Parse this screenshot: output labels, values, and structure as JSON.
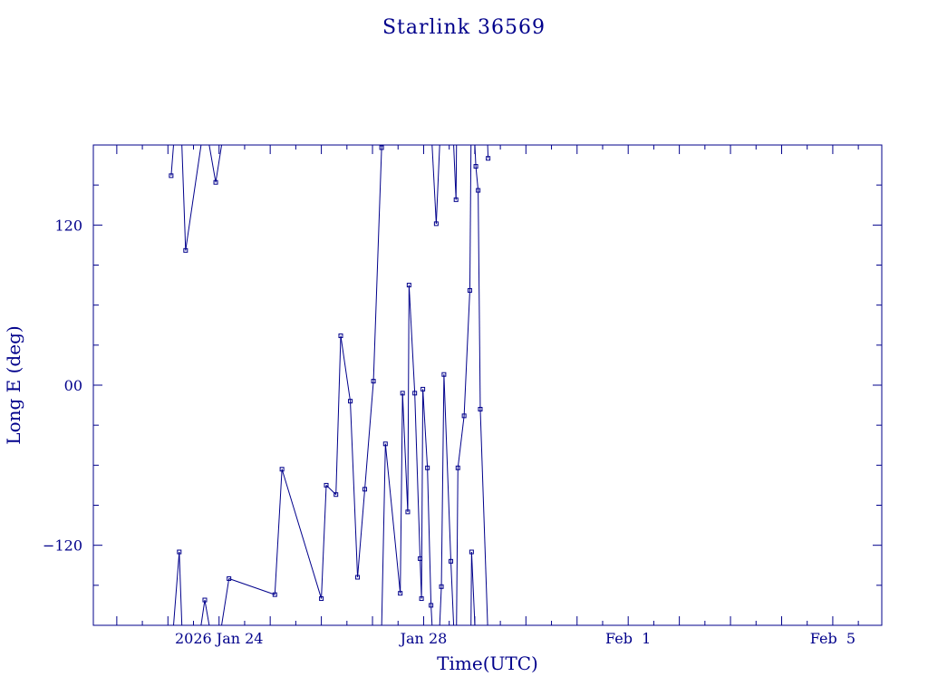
{
  "chart_data": {
    "type": "line",
    "title": "Starlink 36569",
    "xlabel": "Time(UTC)",
    "ylabel": "Long E (deg)",
    "xlim": [
      "2026-01-21T13:00",
      "2026-02-05T23:00"
    ],
    "ylim": [
      -180,
      180
    ],
    "x_tick_labels": [
      {
        "label": "2026 Jan 24",
        "at": "2026-01-24T00:00"
      },
      {
        "label": "Jan 28",
        "at": "2026-01-28T00:00"
      },
      {
        "label": "Feb  1",
        "at": "2026-02-01T00:00"
      },
      {
        "label": "Feb  5",
        "at": "2026-02-05T00:00"
      }
    ],
    "y_tick_labels": [
      {
        "label": "120",
        "at": 120
      },
      {
        "label": "00",
        "at": 0
      },
      {
        "label": "−120",
        "at": -120
      }
    ],
    "y_minor_step": 30,
    "x_minor_step_hours": 12,
    "grid": false,
    "color": "#00008b",
    "series": [
      {
        "values": [
          [
            "2026-01-23T01:31",
            157
          ],
          [
            "2026-01-23T05:19",
            -125
          ],
          [
            "2026-01-23T08:18",
            101
          ],
          [
            "2026-01-23T17:18",
            -161
          ],
          [
            "2026-01-23T22:26",
            152
          ],
          [
            "2026-01-24T04:39",
            -145
          ],
          [
            "2026-01-25T02:11",
            -157
          ],
          [
            "2026-01-25T05:31",
            -63
          ],
          [
            "2026-01-26T00:00",
            -160
          ],
          [
            "2026-01-26T02:18",
            -75
          ],
          [
            "2026-01-26T06:51",
            -82
          ],
          [
            "2026-01-26T09:06",
            37
          ],
          [
            "2026-01-26T13:35",
            -12
          ],
          [
            "2026-01-26T17:00",
            -144
          ],
          [
            "2026-01-26T20:23",
            -78
          ],
          [
            "2026-01-27T00:27",
            3
          ],
          [
            "2026-01-27T04:17",
            178
          ],
          [
            "2026-01-27T06:04",
            -44
          ],
          [
            "2026-01-27T13:02",
            -156
          ],
          [
            "2026-01-27T14:06",
            -6
          ],
          [
            "2026-01-27T16:33",
            -95
          ],
          [
            "2026-01-27T17:09",
            75
          ],
          [
            "2026-01-27T19:50",
            -6
          ],
          [
            "2026-01-27T22:20",
            -130
          ],
          [
            "2026-01-27T23:00",
            -160
          ],
          [
            "2026-01-27T23:38",
            -3
          ],
          [
            "2026-01-28T01:47",
            -62
          ],
          [
            "2026-01-28T03:28",
            -165
          ],
          [
            "2026-01-28T05:55",
            121
          ],
          [
            "2026-01-28T08:20",
            -151
          ],
          [
            "2026-01-28T09:32",
            8
          ],
          [
            "2026-01-28T12:47",
            -132
          ],
          [
            "2026-01-28T15:12",
            139
          ],
          [
            "2026-01-28T16:05",
            -62
          ],
          [
            "2026-01-28T19:00",
            -23
          ],
          [
            "2026-01-28T21:41",
            71
          ],
          [
            "2026-01-28T22:30",
            -125
          ],
          [
            "2026-01-29T00:30",
            164
          ],
          [
            "2026-01-29T01:35",
            146
          ],
          [
            "2026-01-29T02:35",
            -18
          ],
          [
            "2026-01-29T06:15",
            170
          ]
        ]
      }
    ]
  }
}
